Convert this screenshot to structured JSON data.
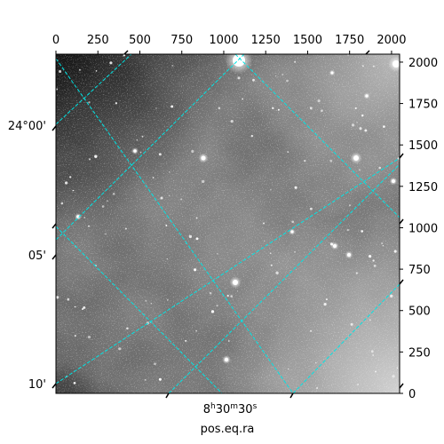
{
  "chart_data": {
    "type": "heatmap",
    "description_kind": "astronomical grayscale image with WCS coordinate grid",
    "pixel_axes": {
      "top": {
        "ticks": [
          "0",
          "250",
          "500",
          "750",
          "1000",
          "1250",
          "1500",
          "1750",
          "2000"
        ],
        "range": [
          0,
          2048
        ]
      },
      "right": {
        "ticks": [
          "0",
          "250",
          "500",
          "750",
          "1000",
          "1250",
          "1500",
          "1750",
          "2000"
        ],
        "range": [
          0,
          2048
        ]
      }
    },
    "world_axes": {
      "left_ticks": [
        "24°00'",
        "05'",
        "10'"
      ],
      "bottom_tick": {
        "main": "8",
        "sup1": "h",
        "mid": "30",
        "sup2": "m",
        "end": "30",
        "sup3": "s"
      },
      "xlabel": "pos.eq.ra"
    },
    "grid": {
      "enabled": true,
      "color": "#00e5e5",
      "style": "dashed"
    },
    "colormap": "gray"
  }
}
